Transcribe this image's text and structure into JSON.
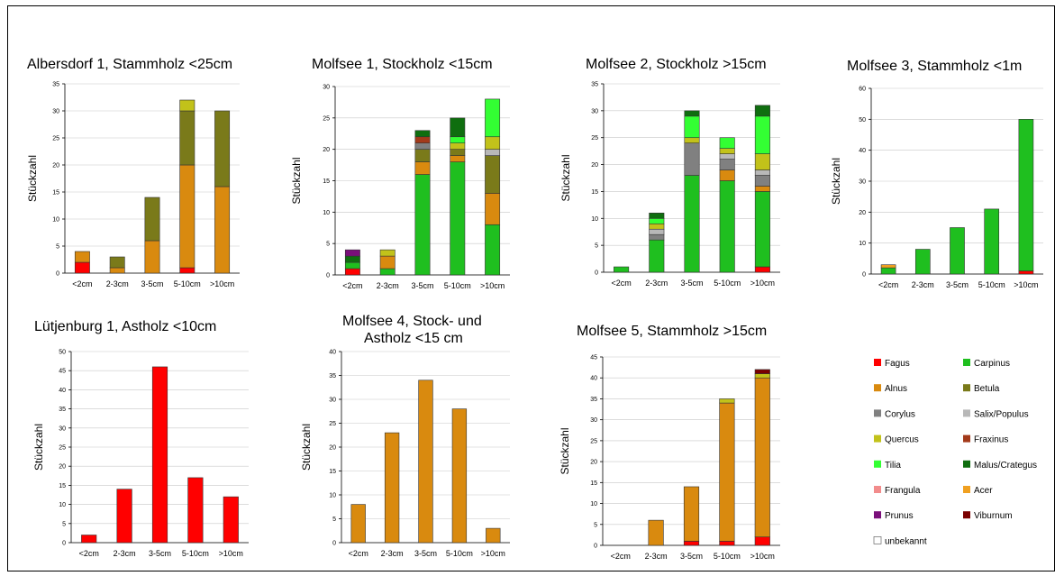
{
  "species_colors": {
    "Fagus": "#ff0000",
    "Carpinus": "#1fbf1f",
    "Alnus": "#d98a0f",
    "Betula": "#7a7a1a",
    "Corylus": "#808080",
    "Salix/Populus": "#b8b8b8",
    "Quercus": "#c2c21a",
    "Fraxinus": "#a33a1a",
    "Tilia": "#33ff33",
    "Malus/Crataegus": "#0f6e0f",
    "Frangula": "#f28c8c",
    "Acer": "#f0a020",
    "Prunus": "#7a0f7a",
    "Viburnum": "#7a0000",
    "unbekannt": "#ffffff"
  },
  "legend": {
    "items": [
      "Fagus",
      "Carpinus",
      "Alnus",
      "Betula",
      "Corylus",
      "Salix/Populus",
      "Quercus",
      "Fraxinus",
      "Tilia",
      "Malus/Crategus",
      "Frangula",
      "Acer",
      "Prunus",
      "Viburnum",
      "unbekannt"
    ],
    "color_keys": [
      "Fagus",
      "Carpinus",
      "Alnus",
      "Betula",
      "Corylus",
      "Salix/Populus",
      "Quercus",
      "Fraxinus",
      "Tilia",
      "Malus/Crataegus",
      "Frangula",
      "Acer",
      "Prunus",
      "Viburnum",
      "unbekannt"
    ]
  },
  "chart_data": [
    {
      "type": "bar",
      "stacked": true,
      "title": "Albersdorf 1, Stammholz <25cm",
      "ylabel": "Stückzahl",
      "ylim": [
        0,
        35
      ],
      "ytick_step": 5,
      "categories": [
        "<2cm",
        "2-3cm",
        "3-5cm",
        "5-10cm",
        ">10cm"
      ],
      "series": [
        {
          "species": "Fagus",
          "values": [
            2,
            0,
            0,
            1,
            0
          ]
        },
        {
          "species": "Alnus",
          "values": [
            2,
            1,
            6,
            19,
            16
          ]
        },
        {
          "species": "Betula",
          "values": [
            0,
            2,
            8,
            10,
            14
          ]
        },
        {
          "species": "Quercus",
          "values": [
            0,
            0,
            0,
            2,
            0
          ]
        }
      ]
    },
    {
      "type": "bar",
      "stacked": true,
      "title": "Molfsee 1, Stockholz <15cm",
      "ylabel": "Stückzahl",
      "ylim": [
        0,
        30
      ],
      "ytick_step": 5,
      "categories": [
        "<2cm",
        "2-3cm",
        "3-5cm",
        "5-10cm",
        ">10cm"
      ],
      "series": [
        {
          "species": "Fagus",
          "values": [
            1,
            0,
            0,
            0,
            0
          ]
        },
        {
          "species": "Carpinus",
          "values": [
            1,
            1,
            16,
            18,
            8
          ]
        },
        {
          "species": "Alnus",
          "values": [
            0,
            2,
            2,
            1,
            5
          ]
        },
        {
          "species": "Betula",
          "values": [
            0,
            0,
            2,
            1,
            6
          ]
        },
        {
          "species": "Corylus",
          "values": [
            0,
            0,
            1,
            0,
            0
          ]
        },
        {
          "species": "Salix/Populus",
          "values": [
            0,
            0,
            0,
            0,
            1
          ]
        },
        {
          "species": "Quercus",
          "values": [
            0,
            1,
            0,
            1,
            2
          ]
        },
        {
          "species": "Fraxinus",
          "values": [
            0,
            0,
            1,
            0,
            0
          ]
        },
        {
          "species": "Tilia",
          "values": [
            0,
            0,
            0,
            1,
            6
          ]
        },
        {
          "species": "Malus/Crataegus",
          "values": [
            1,
            0,
            1,
            3,
            0
          ]
        },
        {
          "species": "Prunus",
          "values": [
            1,
            0,
            0,
            0,
            0
          ]
        }
      ]
    },
    {
      "type": "bar",
      "stacked": true,
      "title": "Molfsee 2, Stockholz >15cm",
      "ylabel": "Stückzahl",
      "ylim": [
        0,
        35
      ],
      "ytick_step": 5,
      "categories": [
        "<2cm",
        "2-3cm",
        "3-5cm",
        "5-10cm",
        ">10cm"
      ],
      "series": [
        {
          "species": "Fagus",
          "values": [
            0,
            0,
            0,
            0,
            1
          ]
        },
        {
          "species": "Carpinus",
          "values": [
            1,
            6,
            18,
            17,
            14
          ]
        },
        {
          "species": "Alnus",
          "values": [
            0,
            0,
            0,
            2,
            1
          ]
        },
        {
          "species": "Corylus",
          "values": [
            0,
            1,
            6,
            2,
            2
          ]
        },
        {
          "species": "Salix/Populus",
          "values": [
            0,
            1,
            0,
            1,
            1
          ]
        },
        {
          "species": "Quercus",
          "values": [
            0,
            1,
            1,
            1,
            3
          ]
        },
        {
          "species": "Tilia",
          "values": [
            0,
            1,
            4,
            2,
            7
          ]
        },
        {
          "species": "Malus/Crataegus",
          "values": [
            0,
            1,
            1,
            0,
            2
          ]
        }
      ]
    },
    {
      "type": "bar",
      "stacked": true,
      "title": "Molfsee 3, Stammholz <1m",
      "ylabel": "Stückzahl",
      "ylim": [
        0,
        60
      ],
      "ytick_step": 10,
      "categories": [
        "<2cm",
        "2-3cm",
        "3-5cm",
        "5-10cm",
        ">10cm"
      ],
      "series": [
        {
          "species": "Fagus",
          "values": [
            0,
            0,
            0,
            0,
            1
          ]
        },
        {
          "species": "Carpinus",
          "values": [
            2,
            8,
            15,
            21,
            49
          ]
        },
        {
          "species": "Acer",
          "values": [
            1,
            0,
            0,
            0,
            0
          ]
        }
      ]
    },
    {
      "type": "bar",
      "stacked": true,
      "title": "Lütjenburg 1, Astholz <10cm",
      "ylabel": "Stückzahl",
      "ylim": [
        0,
        50
      ],
      "ytick_step": 5,
      "categories": [
        "<2cm",
        "2-3cm",
        "3-5cm",
        "5-10cm",
        ">10cm"
      ],
      "series": [
        {
          "species": "Fagus",
          "values": [
            2,
            14,
            46,
            17,
            12
          ]
        }
      ]
    },
    {
      "type": "bar",
      "stacked": true,
      "title": "Molfsee 4, Stock- und Astholz <15 cm",
      "title_lines": [
        "Molfsee 4, Stock- und",
        "Astholz <15 cm"
      ],
      "ylabel": "Stückzahl",
      "ylim": [
        0,
        40
      ],
      "ytick_step": 5,
      "categories": [
        "<2cm",
        "2-3cm",
        "3-5cm",
        "5-10cm",
        ">10cm"
      ],
      "series": [
        {
          "species": "Alnus",
          "values": [
            8,
            23,
            34,
            28,
            3
          ]
        }
      ]
    },
    {
      "type": "bar",
      "stacked": true,
      "title": "Molfsee 5, Stammholz >15cm",
      "ylabel": "Stückzahl",
      "ylim": [
        0,
        45
      ],
      "ytick_step": 5,
      "categories": [
        "<2cm",
        "2-3cm",
        "3-5cm",
        "5-10cm",
        ">10cm"
      ],
      "series": [
        {
          "species": "Fagus",
          "values": [
            0,
            0,
            1,
            1,
            2
          ]
        },
        {
          "species": "Alnus",
          "values": [
            0,
            6,
            13,
            33,
            38
          ]
        },
        {
          "species": "Quercus",
          "values": [
            0,
            0,
            0,
            1,
            1
          ]
        },
        {
          "species": "Viburnum",
          "values": [
            0,
            0,
            0,
            0,
            1
          ]
        }
      ]
    }
  ]
}
